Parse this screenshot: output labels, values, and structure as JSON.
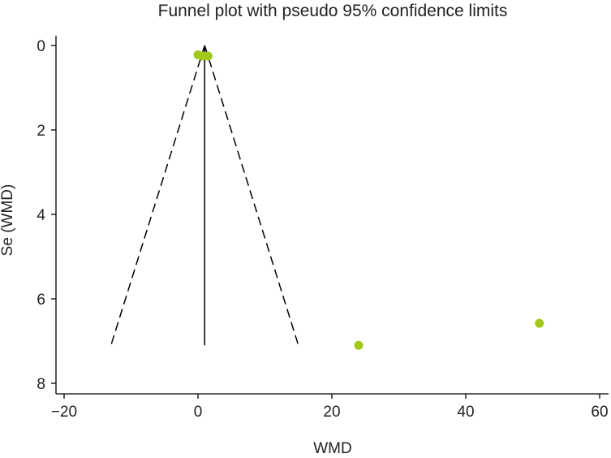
{
  "chart_data": {
    "type": "scatter",
    "title": "Funnel plot with pseudo 95% confidence limits",
    "xlabel": "WMD",
    "ylabel": "Se (WMD)",
    "xlim": [
      -22,
      61
    ],
    "ylim": [
      8.2,
      -0.2
    ],
    "y_reversed": true,
    "xticks": [
      -20,
      0,
      20,
      40,
      60
    ],
    "xtick_labels": [
      "−20",
      "0",
      "20",
      "40",
      "60"
    ],
    "yticks": [
      0,
      2,
      4,
      6,
      8
    ],
    "ytick_labels": [
      "0",
      "2",
      "4",
      "6",
      "8"
    ],
    "points": [
      {
        "x": 0.0,
        "y": 0.22
      },
      {
        "x": 0.7,
        "y": 0.25
      },
      {
        "x": 1.5,
        "y": 0.25
      },
      {
        "x": 24.0,
        "y": 7.1
      },
      {
        "x": 51.0,
        "y": 6.58
      }
    ],
    "pooled_estimate": 1.0,
    "ci_lines": {
      "se_max": 7.1,
      "lower_at_max": -13.0,
      "upper_at_max": 15.0
    },
    "marker_color": "#a3c91c",
    "line_color": "#000000"
  }
}
